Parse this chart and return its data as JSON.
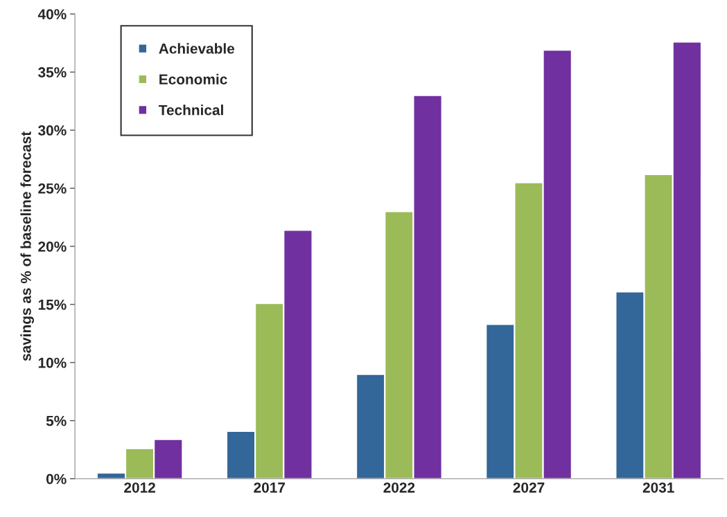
{
  "chart_data": {
    "type": "bar",
    "ylabel": "savings as % of baseline forecast",
    "categories": [
      "2012",
      "2017",
      "2022",
      "2027",
      "2031"
    ],
    "series": [
      {
        "name": "Achievable",
        "color": "#336699",
        "values": [
          0.5,
          4.1,
          9.0,
          13.3,
          16.1
        ]
      },
      {
        "name": "Economic",
        "color": "#9bbb59",
        "values": [
          2.6,
          15.1,
          23.0,
          25.5,
          26.2
        ]
      },
      {
        "name": "Technical",
        "color": "#7030a0",
        "values": [
          3.4,
          21.4,
          33.0,
          36.9,
          37.6
        ]
      }
    ],
    "ylim": [
      0,
      40
    ],
    "yticks": [
      {
        "value": 0,
        "label": "0%"
      },
      {
        "value": 5,
        "label": "5%"
      },
      {
        "value": 10,
        "label": "10%"
      },
      {
        "value": 15,
        "label": "15%"
      },
      {
        "value": 20,
        "label": "20%"
      },
      {
        "value": 25,
        "label": "25%"
      },
      {
        "value": 30,
        "label": "30%"
      },
      {
        "value": 35,
        "label": "35%"
      },
      {
        "value": 40,
        "label": "40%"
      }
    ],
    "grid": false,
    "legend": "top left"
  }
}
